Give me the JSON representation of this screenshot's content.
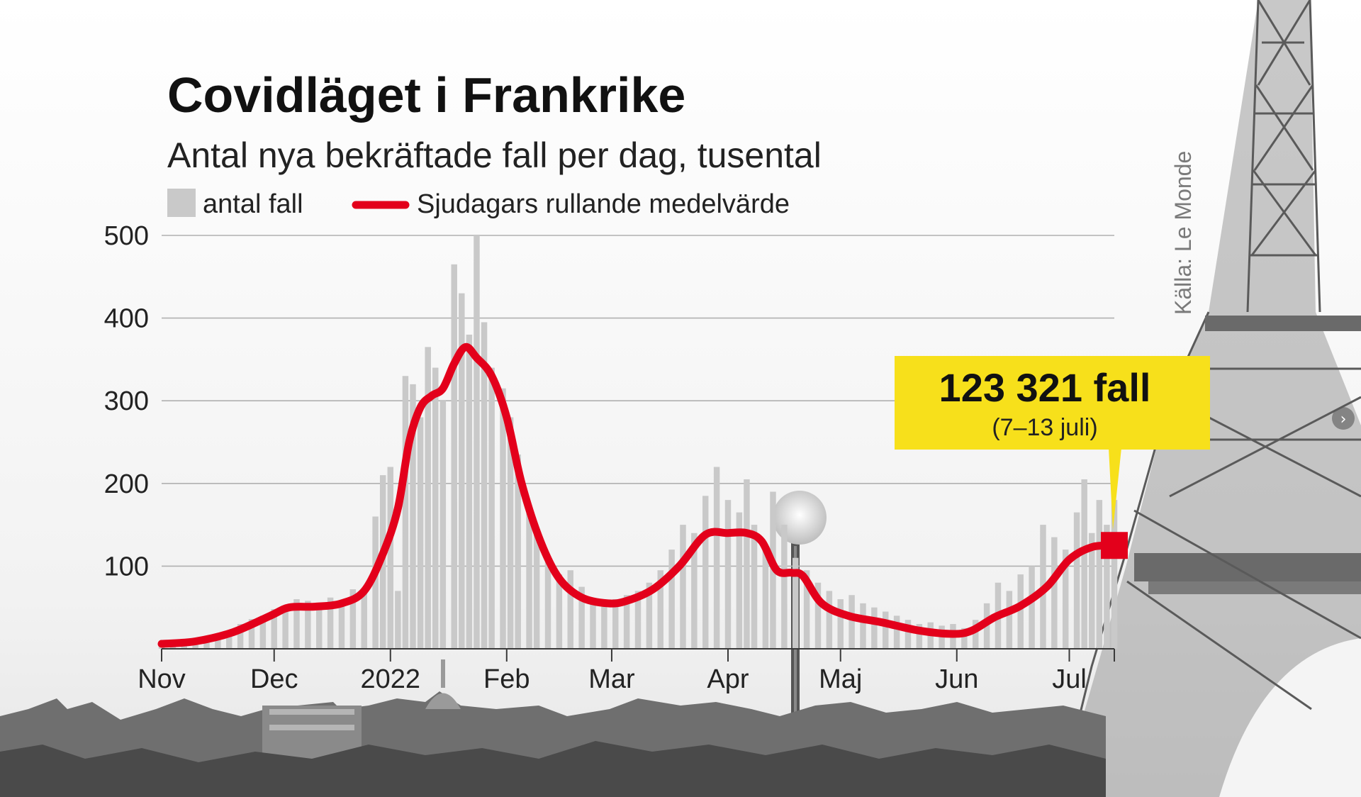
{
  "chart_data": {
    "type": "bar",
    "title": "Covidläget i Frankrike",
    "subtitle": "Antal nya bekräftade fall per dag, tusental",
    "source": "Källa: Le Monde",
    "legend": [
      {
        "name": "antal fall",
        "color": "#c9c9c9",
        "kind": "bar"
      },
      {
        "name": "Sjudagars rullande medelvärde",
        "color": "#e3001b",
        "kind": "line"
      }
    ],
    "ylim": [
      0,
      500
    ],
    "yticks": [
      100,
      200,
      300,
      400,
      500
    ],
    "x_range": [
      "2021-11-01",
      "2022-07-13"
    ],
    "x_ticks": [
      {
        "label": "Nov",
        "date": "2021-11-01"
      },
      {
        "label": "Dec",
        "date": "2021-12-01"
      },
      {
        "label": "2022",
        "date": "2022-01-01"
      },
      {
        "label": "Feb",
        "date": "2022-02-01"
      },
      {
        "label": "Mar",
        "date": "2022-03-01"
      },
      {
        "label": "Apr",
        "date": "2022-04-01"
      },
      {
        "label": "Maj",
        "date": "2022-05-01"
      },
      {
        "label": "Jun",
        "date": "2022-06-01"
      },
      {
        "label": "Jul",
        "date": "2022-07-01"
      }
    ],
    "series": [
      {
        "name": "antal fall",
        "kind": "bar",
        "points": [
          [
            "2021-11-01",
            4
          ],
          [
            "2021-11-04",
            8
          ],
          [
            "2021-11-07",
            6
          ],
          [
            "2021-11-10",
            10
          ],
          [
            "2021-11-13",
            12
          ],
          [
            "2021-11-16",
            18
          ],
          [
            "2021-11-19",
            22
          ],
          [
            "2021-11-22",
            30
          ],
          [
            "2021-11-25",
            36
          ],
          [
            "2021-11-28",
            40
          ],
          [
            "2021-12-01",
            48
          ],
          [
            "2021-12-04",
            52
          ],
          [
            "2021-12-07",
            60
          ],
          [
            "2021-12-10",
            58
          ],
          [
            "2021-12-13",
            50
          ],
          [
            "2021-12-16",
            62
          ],
          [
            "2021-12-19",
            58
          ],
          [
            "2021-12-22",
            72
          ],
          [
            "2021-12-25",
            70
          ],
          [
            "2021-12-28",
            160
          ],
          [
            "2021-12-30",
            210
          ],
          [
            "2022-01-01",
            220
          ],
          [
            "2022-01-03",
            70
          ],
          [
            "2022-01-05",
            330
          ],
          [
            "2022-01-07",
            320
          ],
          [
            "2022-01-09",
            280
          ],
          [
            "2022-01-11",
            365
          ],
          [
            "2022-01-13",
            340
          ],
          [
            "2022-01-15",
            300
          ],
          [
            "2022-01-18",
            465
          ],
          [
            "2022-01-20",
            430
          ],
          [
            "2022-01-22",
            380
          ],
          [
            "2022-01-24",
            500
          ],
          [
            "2022-01-26",
            395
          ],
          [
            "2022-01-28",
            340
          ],
          [
            "2022-01-31",
            315
          ],
          [
            "2022-02-02",
            280
          ],
          [
            "2022-02-04",
            235
          ],
          [
            "2022-02-07",
            165
          ],
          [
            "2022-02-09",
            145
          ],
          [
            "2022-02-12",
            110
          ],
          [
            "2022-02-15",
            90
          ],
          [
            "2022-02-18",
            95
          ],
          [
            "2022-02-21",
            75
          ],
          [
            "2022-02-24",
            60
          ],
          [
            "2022-02-27",
            55
          ],
          [
            "2022-03-02",
            60
          ],
          [
            "2022-03-05",
            65
          ],
          [
            "2022-03-08",
            70
          ],
          [
            "2022-03-11",
            80
          ],
          [
            "2022-03-14",
            95
          ],
          [
            "2022-03-17",
            120
          ],
          [
            "2022-03-20",
            150
          ],
          [
            "2022-03-23",
            140
          ],
          [
            "2022-03-26",
            185
          ],
          [
            "2022-03-29",
            220
          ],
          [
            "2022-04-01",
            180
          ],
          [
            "2022-04-04",
            165
          ],
          [
            "2022-04-06",
            205
          ],
          [
            "2022-04-08",
            150
          ],
          [
            "2022-04-11",
            120
          ],
          [
            "2022-04-13",
            190
          ],
          [
            "2022-04-16",
            150
          ],
          [
            "2022-04-19",
            110
          ],
          [
            "2022-04-22",
            95
          ],
          [
            "2022-04-25",
            80
          ],
          [
            "2022-04-28",
            70
          ],
          [
            "2022-05-01",
            60
          ],
          [
            "2022-05-04",
            65
          ],
          [
            "2022-05-07",
            55
          ],
          [
            "2022-05-10",
            50
          ],
          [
            "2022-05-13",
            45
          ],
          [
            "2022-05-16",
            40
          ],
          [
            "2022-05-19",
            35
          ],
          [
            "2022-05-22",
            30
          ],
          [
            "2022-05-25",
            32
          ],
          [
            "2022-05-28",
            28
          ],
          [
            "2022-05-31",
            30
          ],
          [
            "2022-06-03",
            25
          ],
          [
            "2022-06-06",
            35
          ],
          [
            "2022-06-09",
            55
          ],
          [
            "2022-06-12",
            80
          ],
          [
            "2022-06-15",
            70
          ],
          [
            "2022-06-18",
            90
          ],
          [
            "2022-06-21",
            100
          ],
          [
            "2022-06-24",
            150
          ],
          [
            "2022-06-27",
            135
          ],
          [
            "2022-06-30",
            120
          ],
          [
            "2022-07-03",
            165
          ],
          [
            "2022-07-05",
            205
          ],
          [
            "2022-07-07",
            140
          ],
          [
            "2022-07-09",
            180
          ],
          [
            "2022-07-11",
            150
          ],
          [
            "2022-07-13",
            180
          ]
        ]
      },
      {
        "name": "Sjudagars rullande medelvärde",
        "kind": "line",
        "color": "#e3001b",
        "points": [
          [
            "2021-11-01",
            6
          ],
          [
            "2021-11-10",
            9
          ],
          [
            "2021-11-20",
            20
          ],
          [
            "2021-11-30",
            40
          ],
          [
            "2021-12-05",
            50
          ],
          [
            "2021-12-12",
            51
          ],
          [
            "2021-12-19",
            55
          ],
          [
            "2021-12-25",
            70
          ],
          [
            "2021-12-30",
            115
          ],
          [
            "2022-01-03",
            170
          ],
          [
            "2022-01-06",
            250
          ],
          [
            "2022-01-09",
            292
          ],
          [
            "2022-01-12",
            306
          ],
          [
            "2022-01-15",
            315
          ],
          [
            "2022-01-18",
            345
          ],
          [
            "2022-01-21",
            365
          ],
          [
            "2022-01-24",
            352
          ],
          [
            "2022-01-28",
            330
          ],
          [
            "2022-02-01",
            280
          ],
          [
            "2022-02-05",
            200
          ],
          [
            "2022-02-10",
            130
          ],
          [
            "2022-02-15",
            85
          ],
          [
            "2022-02-21",
            62
          ],
          [
            "2022-02-28",
            55
          ],
          [
            "2022-03-05",
            58
          ],
          [
            "2022-03-12",
            72
          ],
          [
            "2022-03-19",
            100
          ],
          [
            "2022-03-26",
            138
          ],
          [
            "2022-04-01",
            140
          ],
          [
            "2022-04-06",
            140
          ],
          [
            "2022-04-10",
            130
          ],
          [
            "2022-04-14",
            95
          ],
          [
            "2022-04-18",
            92
          ],
          [
            "2022-04-21",
            88
          ],
          [
            "2022-04-26",
            55
          ],
          [
            "2022-05-03",
            40
          ],
          [
            "2022-05-12",
            32
          ],
          [
            "2022-05-22",
            22
          ],
          [
            "2022-05-31",
            18
          ],
          [
            "2022-06-05",
            22
          ],
          [
            "2022-06-11",
            38
          ],
          [
            "2022-06-18",
            52
          ],
          [
            "2022-06-25",
            75
          ],
          [
            "2022-07-01",
            108
          ],
          [
            "2022-07-07",
            123
          ],
          [
            "2022-07-13",
            125
          ]
        ]
      }
    ],
    "annotation": {
      "value": "123 321 fall",
      "sub": "(7–13 juli)",
      "date": "2022-07-13",
      "y": 125,
      "color": "#f7e01b"
    }
  },
  "ui": {
    "next_arrow": "›"
  }
}
